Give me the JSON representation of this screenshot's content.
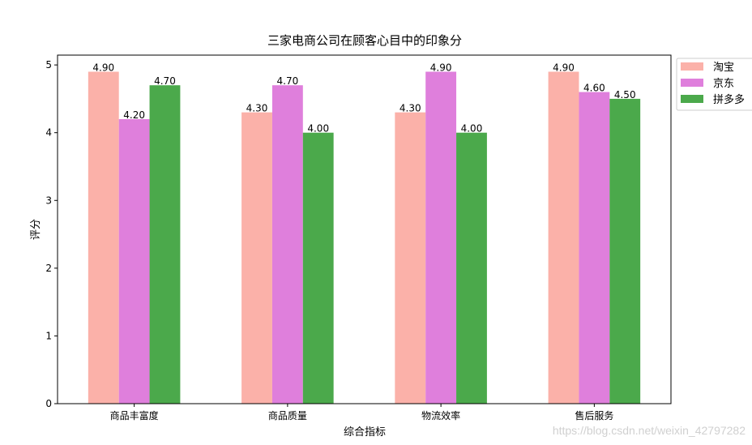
{
  "chart_data": {
    "type": "bar",
    "title": "三家电商公司在顾客心目中的印象分",
    "xlabel": "综合指标",
    "ylabel": "评分",
    "categories": [
      "商品丰富度",
      "商品质量",
      "物流效率",
      "售后服务"
    ],
    "series": [
      {
        "name": "淘宝",
        "values": [
          4.9,
          4.3,
          4.3,
          4.9
        ],
        "color": "#fbb1a9"
      },
      {
        "name": "京东",
        "values": [
          4.2,
          4.7,
          4.9,
          4.6
        ],
        "color": "#df7fdc"
      },
      {
        "name": "拼多多",
        "values": [
          4.7,
          4.0,
          4.0,
          4.5
        ],
        "color": "#4ba94b"
      }
    ],
    "ylim": [
      0,
      5.145
    ],
    "yticks": [
      0,
      1,
      2,
      3,
      4,
      5
    ],
    "data_label_format": "2 decimals",
    "grid": false,
    "legend": "outside-top-right"
  },
  "watermark": "https://blog.csdn.net/weixin_42797282"
}
